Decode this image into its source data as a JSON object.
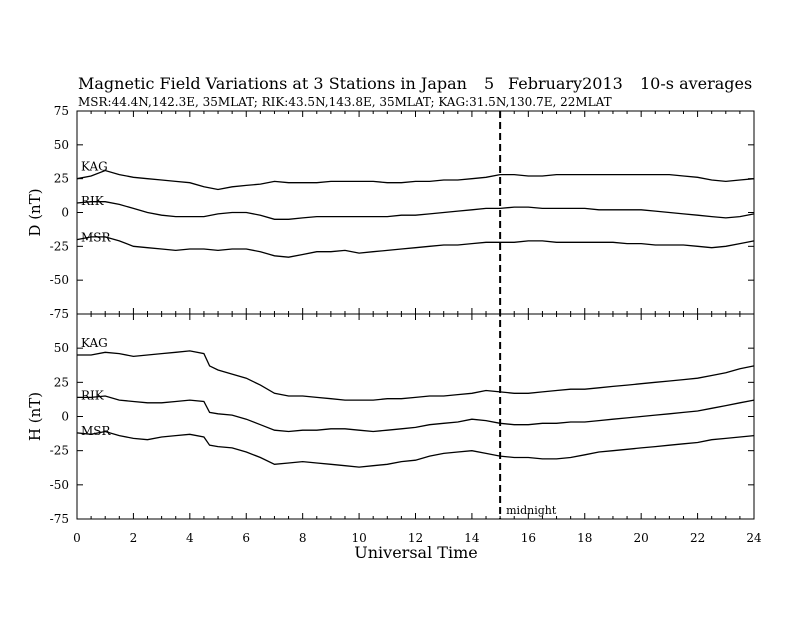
{
  "chart_data": {
    "type": "line",
    "title": "Magnetic Field Variations at 3 Stations in Japan",
    "date_day": "5",
    "date_month_year": "February2013",
    "averaging": "10-s averages",
    "subtitle": "MSR:44.4N,142.3E, 35MLAT;  RIK:43.5N,143.8E, 35MLAT;  KAG:31.5N,130.7E, 22MLAT",
    "xlabel": "Universal Time",
    "xlim": [
      0,
      24
    ],
    "xticks": [
      0,
      2,
      4,
      6,
      8,
      10,
      12,
      14,
      16,
      18,
      20,
      22,
      24
    ],
    "grid": false,
    "annotation": {
      "x": 15,
      "label": "midnight",
      "style": "dashed"
    },
    "panels": [
      {
        "ylabel": "D (nT)",
        "ylim": [
          -75,
          75
        ],
        "yticks": [
          75,
          50,
          25,
          0,
          -25,
          -50,
          -75
        ],
        "series": [
          {
            "name": "KAG",
            "x": [
              0,
              0.5,
              1,
              1.5,
              2,
              2.5,
              3,
              3.5,
              4,
              4.5,
              5,
              5.5,
              6,
              6.5,
              7,
              7.5,
              8,
              8.5,
              9,
              9.5,
              10,
              10.5,
              11,
              11.5,
              12,
              12.5,
              13,
              13.5,
              14,
              14.5,
              15,
              15.5,
              16,
              16.5,
              17,
              17.5,
              18,
              18.5,
              19,
              19.5,
              20,
              20.5,
              21,
              21.5,
              22,
              22.5,
              23,
              23.5,
              24
            ],
            "values": [
              25,
              27,
              31,
              28,
              26,
              25,
              24,
              23,
              22,
              19,
              17,
              19,
              20,
              21,
              23,
              22,
              22,
              22,
              23,
              23,
              23,
              23,
              22,
              22,
              23,
              23,
              24,
              24,
              25,
              26,
              28,
              28,
              27,
              27,
              28,
              28,
              28,
              28,
              28,
              28,
              28,
              28,
              28,
              27,
              26,
              24,
              23,
              24,
              25
            ]
          },
          {
            "name": "RIK",
            "x": [
              0,
              0.5,
              1,
              1.5,
              2,
              2.5,
              3,
              3.5,
              4,
              4.5,
              5,
              5.5,
              6,
              6.5,
              7,
              7.5,
              8,
              8.5,
              9,
              9.5,
              10,
              10.5,
              11,
              11.5,
              12,
              12.5,
              13,
              13.5,
              14,
              14.5,
              15,
              15.5,
              16,
              16.5,
              17,
              17.5,
              18,
              18.5,
              19,
              19.5,
              20,
              20.5,
              21,
              21.5,
              22,
              22.5,
              23,
              23.5,
              24
            ],
            "values": [
              7,
              8,
              8,
              6,
              3,
              0,
              -2,
              -3,
              -3,
              -3,
              -1,
              0,
              0,
              -2,
              -5,
              -5,
              -4,
              -3,
              -3,
              -3,
              -3,
              -3,
              -3,
              -2,
              -2,
              -1,
              0,
              1,
              2,
              3,
              3,
              4,
              4,
              3,
              3,
              3,
              3,
              2,
              2,
              2,
              2,
              1,
              0,
              -1,
              -2,
              -3,
              -4,
              -3,
              -1
            ]
          },
          {
            "name": "MSR",
            "x": [
              0,
              0.5,
              1,
              1.5,
              2,
              2.5,
              3,
              3.5,
              4,
              4.5,
              5,
              5.5,
              6,
              6.5,
              7,
              7.5,
              8,
              8.5,
              9,
              9.5,
              10,
              10.5,
              11,
              11.5,
              12,
              12.5,
              13,
              13.5,
              14,
              14.5,
              15,
              15.5,
              16,
              16.5,
              17,
              17.5,
              18,
              18.5,
              19,
              19.5,
              20,
              20.5,
              21,
              21.5,
              22,
              22.5,
              23,
              23.5,
              24
            ],
            "values": [
              -20,
              -18,
              -18,
              -21,
              -25,
              -26,
              -27,
              -28,
              -27,
              -27,
              -28,
              -27,
              -27,
              -29,
              -32,
              -33,
              -31,
              -29,
              -29,
              -28,
              -30,
              -29,
              -28,
              -27,
              -26,
              -25,
              -24,
              -24,
              -23,
              -22,
              -22,
              -22,
              -21,
              -21,
              -22,
              -22,
              -22,
              -22,
              -22,
              -23,
              -23,
              -24,
              -24,
              -24,
              -25,
              -26,
              -25,
              -23,
              -21
            ]
          }
        ]
      },
      {
        "ylabel": "H (nT)",
        "ylim": [
          -75,
          75
        ],
        "yticks": [
          75,
          50,
          25,
          0,
          -25,
          -50,
          -75
        ],
        "series": [
          {
            "name": "KAG",
            "x": [
              0,
              0.5,
              1,
              1.5,
              2,
              2.5,
              3,
              3.5,
              4,
              4.5,
              4.7,
              5,
              5.5,
              6,
              6.5,
              7,
              7.5,
              8,
              8.5,
              9,
              9.5,
              10,
              10.5,
              11,
              11.5,
              12,
              12.5,
              13,
              13.5,
              14,
              14.5,
              15,
              15.5,
              16,
              16.5,
              17,
              17.5,
              18,
              18.5,
              19,
              19.5,
              20,
              20.5,
              21,
              21.5,
              22,
              22.5,
              23,
              23.5,
              24
            ],
            "values": [
              45,
              45,
              47,
              46,
              44,
              45,
              46,
              47,
              48,
              46,
              37,
              34,
              31,
              28,
              23,
              17,
              15,
              15,
              14,
              13,
              12,
              12,
              12,
              13,
              13,
              14,
              15,
              15,
              16,
              17,
              19,
              18,
              17,
              17,
              18,
              19,
              20,
              20,
              21,
              22,
              23,
              24,
              25,
              26,
              27,
              28,
              30,
              32,
              35,
              37
            ]
          },
          {
            "name": "RIK",
            "x": [
              0,
              0.5,
              1,
              1.5,
              2,
              2.5,
              3,
              3.5,
              4,
              4.5,
              4.7,
              5,
              5.5,
              6,
              6.5,
              7,
              7.5,
              8,
              8.5,
              9,
              9.5,
              10,
              10.5,
              11,
              11.5,
              12,
              12.5,
              13,
              13.5,
              14,
              14.5,
              15,
              15.5,
              16,
              16.5,
              17,
              17.5,
              18,
              18.5,
              19,
              19.5,
              20,
              20.5,
              21,
              21.5,
              22,
              22.5,
              23,
              23.5,
              24
            ],
            "values": [
              14,
              14,
              15,
              12,
              11,
              10,
              10,
              11,
              12,
              11,
              3,
              2,
              1,
              -2,
              -6,
              -10,
              -11,
              -10,
              -10,
              -9,
              -9,
              -10,
              -11,
              -10,
              -9,
              -8,
              -6,
              -5,
              -4,
              -2,
              -3,
              -5,
              -6,
              -6,
              -5,
              -5,
              -4,
              -4,
              -3,
              -2,
              -1,
              0,
              1,
              2,
              3,
              4,
              6,
              8,
              10,
              12
            ]
          },
          {
            "name": "MSR",
            "x": [
              0,
              0.5,
              1,
              1.5,
              2,
              2.5,
              3,
              3.5,
              4,
              4.5,
              4.7,
              5,
              5.5,
              6,
              6.5,
              7,
              7.5,
              8,
              8.5,
              9,
              9.5,
              10,
              10.5,
              11,
              11.5,
              12,
              12.5,
              13,
              13.5,
              14,
              14.5,
              15,
              15.5,
              16,
              16.5,
              17,
              17.5,
              18,
              18.5,
              19,
              19.5,
              20,
              20.5,
              21,
              21.5,
              22,
              22.5,
              23,
              23.5,
              24
            ],
            "values": [
              -12,
              -13,
              -11,
              -14,
              -16,
              -17,
              -15,
              -14,
              -13,
              -15,
              -21,
              -22,
              -23,
              -26,
              -30,
              -35,
              -34,
              -33,
              -34,
              -35,
              -36,
              -37,
              -36,
              -35,
              -33,
              -32,
              -29,
              -27,
              -26,
              -25,
              -27,
              -29,
              -30,
              -30,
              -31,
              -31,
              -30,
              -28,
              -26,
              -25,
              -24,
              -23,
              -22,
              -21,
              -20,
              -19,
              -17,
              -16,
              -15,
              -14
            ]
          }
        ]
      }
    ]
  }
}
